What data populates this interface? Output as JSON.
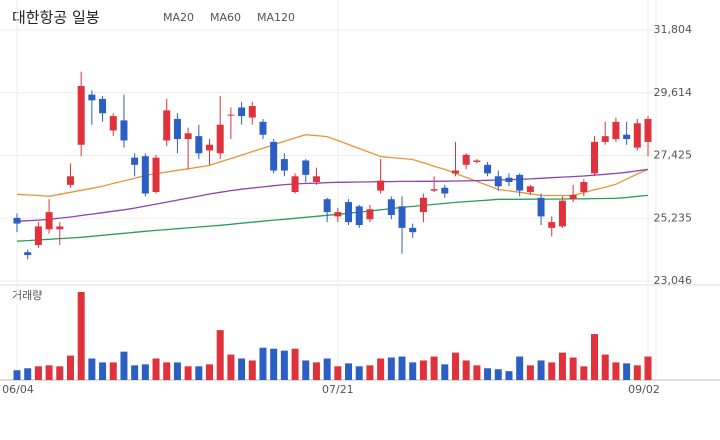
{
  "chart_data": {
    "type": "candlestick",
    "title": "대한항공 일봉",
    "volume_label": "거래량",
    "categories": [
      "06/04",
      null,
      null,
      null,
      null,
      null,
      null,
      null,
      null,
      null,
      null,
      null,
      null,
      null,
      null,
      null,
      null,
      null,
      null,
      null,
      null,
      null,
      null,
      null,
      null,
      null,
      null,
      null,
      null,
      null,
      "07/21",
      null,
      null,
      null,
      null,
      null,
      null,
      null,
      null,
      null,
      null,
      null,
      null,
      null,
      null,
      null,
      null,
      null,
      null,
      null,
      null,
      null,
      null,
      null,
      null,
      null,
      null,
      null,
      null,
      "09/02"
    ],
    "open": [
      25250,
      24050,
      24300,
      24850,
      24850,
      26400,
      27800,
      29550,
      29400,
      28300,
      28650,
      27350,
      27400,
      26150,
      27950,
      28700,
      28000,
      28100,
      27600,
      27500,
      28850,
      29100,
      28750,
      28600,
      27900,
      27300,
      26150,
      27250,
      26500,
      25900,
      25300,
      25800,
      25650,
      25200,
      26200,
      25900,
      25650,
      24900,
      25450,
      26200,
      26300,
      26800,
      27100,
      27200,
      27100,
      26700,
      26650,
      26750,
      26150,
      25950,
      24900,
      24950,
      25900,
      26150,
      26800,
      27900,
      28000,
      28150,
      27700,
      27900
    ],
    "high": [
      25400,
      24150,
      25100,
      25900,
      25100,
      27150,
      30350,
      29700,
      29500,
      28900,
      29550,
      27500,
      27500,
      27450,
      29400,
      28900,
      28400,
      28500,
      28000,
      29500,
      29100,
      29300,
      29300,
      28700,
      28000,
      27500,
      26800,
      27300,
      27000,
      25950,
      25600,
      25900,
      25700,
      25700,
      27300,
      26000,
      26000,
      25050,
      26100,
      26700,
      26400,
      27900,
      27500,
      27300,
      27200,
      26900,
      26800,
      26800,
      26400,
      26100,
      25300,
      26000,
      26400,
      26600,
      28100,
      28600,
      28750,
      28600,
      28700,
      28800
    ],
    "low": [
      24750,
      23800,
      24200,
      24700,
      24300,
      26300,
      27400,
      28500,
      28600,
      28100,
      27700,
      26700,
      26000,
      26100,
      27750,
      27500,
      26950,
      27300,
      27100,
      27300,
      28000,
      28500,
      28500,
      28000,
      26800,
      26700,
      26100,
      26500,
      26400,
      25100,
      25100,
      25000,
      24900,
      25100,
      26100,
      25200,
      24000,
      24550,
      25100,
      26150,
      25950,
      26700,
      26950,
      27150,
      26700,
      26200,
      26350,
      26000,
      26050,
      25000,
      24600,
      24900,
      25800,
      26000,
      26700,
      27800,
      27900,
      27800,
      27600,
      27400
    ],
    "close": [
      25050,
      23950,
      24950,
      25450,
      24950,
      26700,
      29850,
      29350,
      28900,
      28800,
      27950,
      27100,
      26100,
      27350,
      29000,
      28000,
      28200,
      27500,
      27800,
      28500,
      28850,
      28800,
      29150,
      28150,
      26900,
      26900,
      26700,
      26750,
      26700,
      25450,
      25450,
      25100,
      25000,
      25550,
      26550,
      25350,
      24900,
      24750,
      25950,
      26250,
      26100,
      26900,
      27450,
      27250,
      26800,
      26350,
      26500,
      26200,
      26350,
      25300,
      25100,
      25850,
      26050,
      26500,
      27900,
      28100,
      28600,
      28000,
      28550,
      28700
    ],
    "volume": [
      10,
      12,
      14,
      15,
      14,
      25,
      90,
      22,
      18,
      18,
      29,
      15,
      16,
      22,
      18,
      18,
      14,
      14,
      16,
      51,
      26,
      22,
      20,
      33,
      32,
      30,
      32,
      20,
      18,
      22,
      14,
      17,
      14,
      15,
      22,
      23,
      24,
      18,
      20,
      24,
      16,
      28,
      20,
      15,
      12,
      11,
      9,
      24,
      15,
      20,
      18,
      28,
      23,
      14,
      47,
      26,
      18,
      17,
      15,
      24
    ],
    "up_color": "#e0323c",
    "down_color": "#2b5fc4",
    "series": [
      {
        "name": "MA20",
        "color": "#e8953a",
        "values": [
          26070,
          26050,
          26030,
          26000,
          26070,
          26140,
          26210,
          26280,
          26350,
          26450,
          26540,
          26630,
          26730,
          26790,
          26850,
          26910,
          26960,
          27020,
          27080,
          27200,
          27320,
          27440,
          27560,
          27680,
          27800,
          27920,
          28040,
          28150,
          28120,
          28085,
          27950,
          27810,
          27670,
          27530,
          27390,
          27350,
          27320,
          27285,
          27170,
          27050,
          26940,
          26800,
          26660,
          26520,
          26380,
          26240,
          26190,
          26140,
          26090,
          26030,
          26030,
          26030,
          26030,
          26130,
          26230,
          26320,
          26420,
          26600,
          26780,
          26940
        ]
      },
      {
        "name": "MA60",
        "color": "#8e44ad",
        "values": [
          25130,
          25150,
          25170,
          25200,
          25240,
          25280,
          25330,
          25380,
          25430,
          25480,
          25530,
          25590,
          25660,
          25730,
          25800,
          25870,
          25940,
          26010,
          26080,
          26140,
          26200,
          26250,
          26290,
          26330,
          26370,
          26410,
          26430,
          26450,
          26460,
          26480,
          26490,
          26495,
          26500,
          26505,
          26510,
          26515,
          26520,
          26520,
          26525,
          26525,
          26530,
          26535,
          26540,
          26550,
          26560,
          26570,
          26580,
          26590,
          26610,
          26630,
          26650,
          26670,
          26690,
          26710,
          26740,
          26770,
          26800,
          26840,
          26890,
          26940
        ]
      },
      {
        "name": "MA120",
        "color": "#27a05a",
        "values": [
          24435,
          24457,
          24480,
          24502,
          24525,
          24547,
          24570,
          24605,
          24640,
          24675,
          24710,
          24745,
          24780,
          24810,
          24840,
          24870,
          24900,
          24930,
          24960,
          24990,
          25026,
          25062,
          25098,
          25134,
          25170,
          25200,
          25235,
          25270,
          25305,
          25340,
          25375,
          25410,
          25450,
          25490,
          25530,
          25570,
          25617,
          25650,
          25685,
          25720,
          25755,
          25790,
          25815,
          25840,
          25865,
          25895,
          25895,
          25898,
          25900,
          25902,
          25905,
          25908,
          25910,
          25915,
          25920,
          25925,
          25930,
          25960,
          26000,
          26033
        ]
      }
    ],
    "ylim": [
      23046,
      31804
    ],
    "yticks": [
      {
        "value": 23046,
        "label": "23,046"
      },
      {
        "value": 25235,
        "label": "25,235"
      },
      {
        "value": 27425,
        "label": "27,425"
      },
      {
        "value": 29614,
        "label": "29,614"
      },
      {
        "value": 31804,
        "label": "31,804"
      }
    ],
    "grid": true
  }
}
